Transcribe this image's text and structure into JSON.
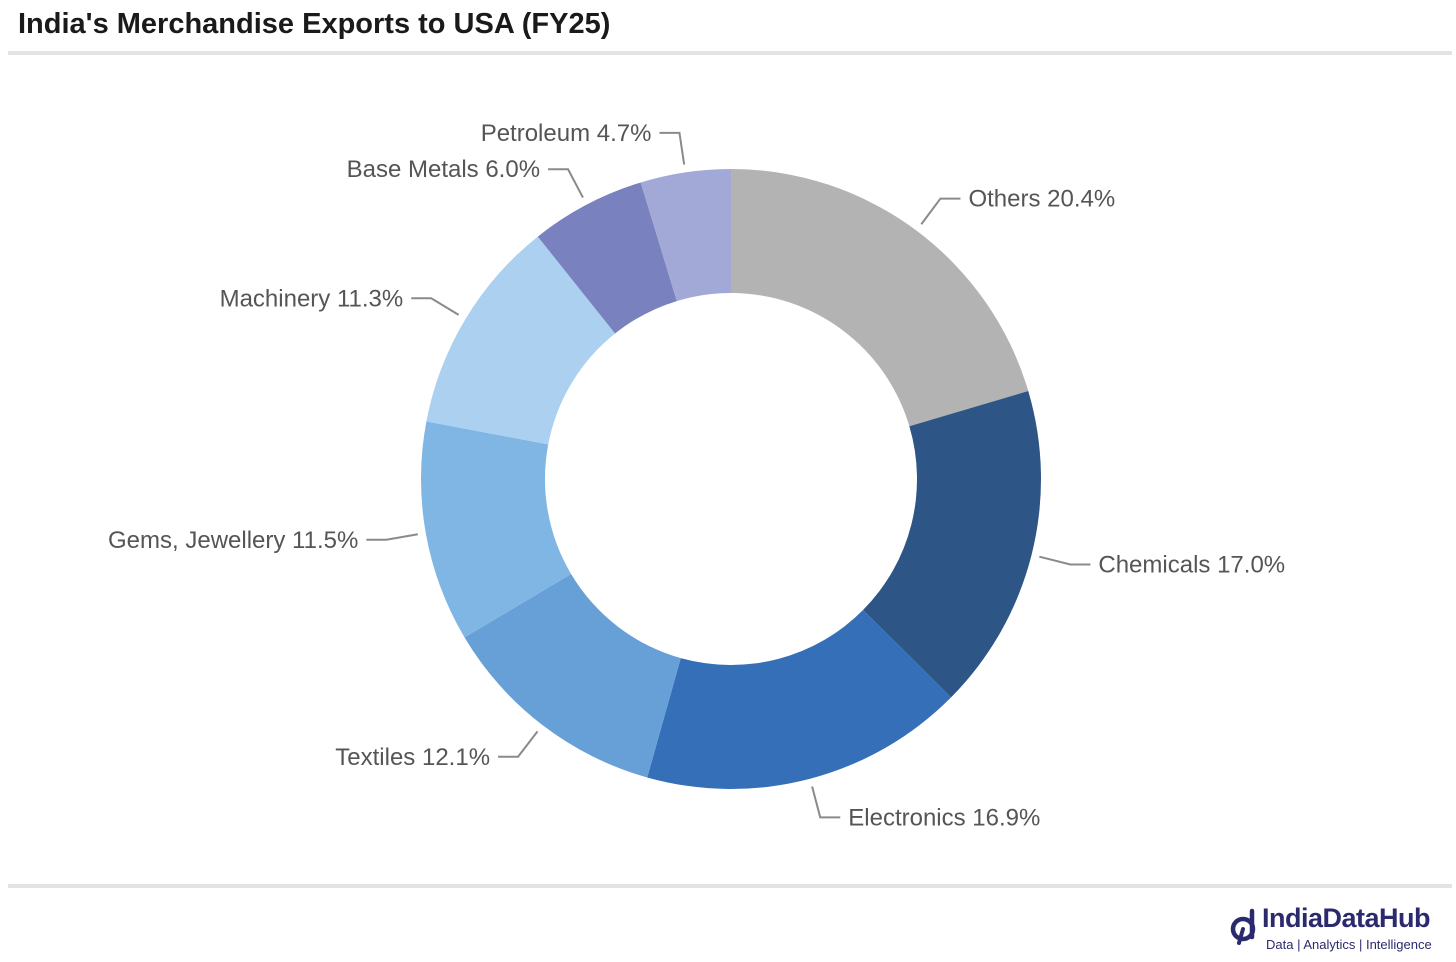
{
  "title": "India's Merchandise Exports to USA (FY25)",
  "chart_data": {
    "type": "pie",
    "variant": "donut",
    "title": "India's Merchandise Exports to USA (FY25)",
    "unit": "%",
    "slices": [
      {
        "label": "Others",
        "value": 20.4,
        "display": "Others 20.4%",
        "color": "#b3b3b3"
      },
      {
        "label": "Chemicals",
        "value": 17.0,
        "display": "Chemicals 17.0%",
        "color": "#2d5586"
      },
      {
        "label": "Electronics",
        "value": 16.9,
        "display": "Electronics 16.9%",
        "color": "#356fb7"
      },
      {
        "label": "Textiles",
        "value": 12.1,
        "display": "Textiles 12.1%",
        "color": "#66a0d7"
      },
      {
        "label": "Gems, Jewellery",
        "value": 11.5,
        "display": "Gems, Jewellery 11.5%",
        "color": "#80b6e4"
      },
      {
        "label": "Machinery",
        "value": 11.3,
        "display": "Machinery 11.3%",
        "color": "#abd0f0"
      },
      {
        "label": "Base Metals",
        "value": 6.0,
        "display": "Base Metals 6.0%",
        "color": "#7981bf"
      },
      {
        "label": "Petroleum",
        "value": 4.7,
        "display": "Petroleum 4.7%",
        "color": "#a2a9d6"
      }
    ],
    "legend": "none",
    "labels": "outside with leader lines"
  },
  "brand": {
    "name": "IndiaDataHub",
    "tagline": "Data | Analytics | Intelligence",
    "color": "#2c2a6e"
  }
}
